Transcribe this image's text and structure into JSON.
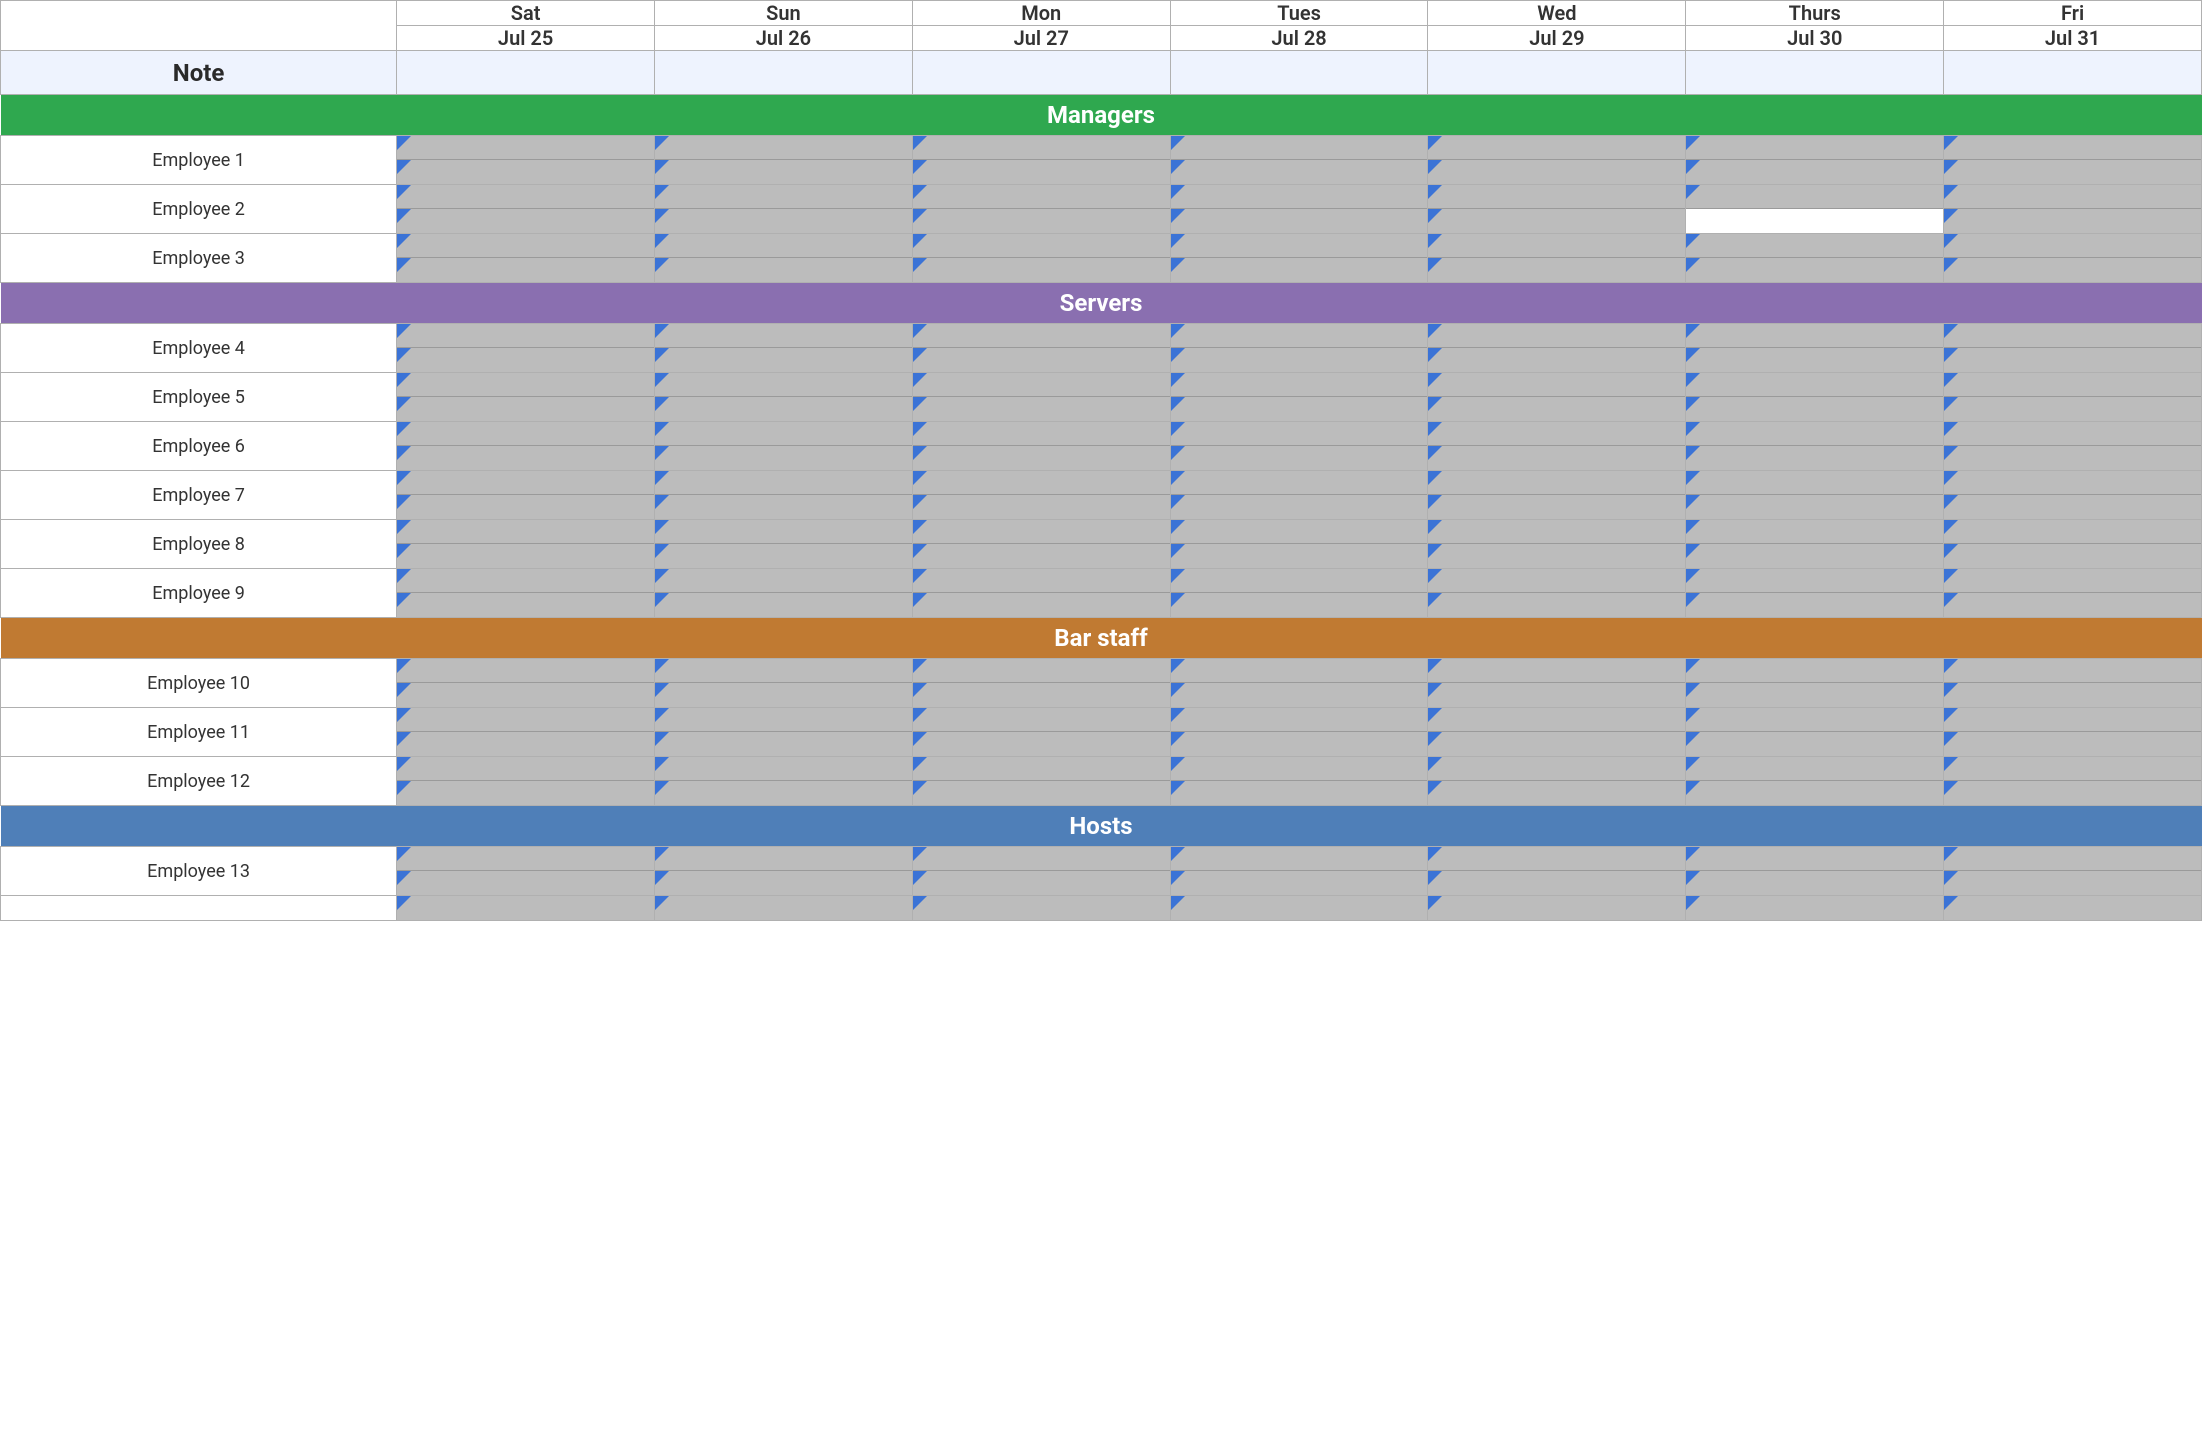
{
  "colors": {
    "flag": "#3b73d6",
    "cell_fill": "#bcbcbc",
    "cell_white": "#ffffff",
    "border": "#9a9a9a",
    "note_bg": "#eef3fe",
    "text": "#333333"
  },
  "days": [
    {
      "name": "Sat",
      "date": "Jul 25"
    },
    {
      "name": "Sun",
      "date": "Jul 26"
    },
    {
      "name": "Mon",
      "date": "Jul 27"
    },
    {
      "name": "Tues",
      "date": "Jul 28"
    },
    {
      "name": "Wed",
      "date": "Jul 29"
    },
    {
      "name": "Thurs",
      "date": "Jul 30"
    },
    {
      "name": "Fri",
      "date": "Jul 31"
    }
  ],
  "note_label": "Note",
  "groups": [
    {
      "name": "Managers",
      "color": "#2fa84f",
      "employees": [
        {
          "name": "Employee 1"
        },
        {
          "name": "Employee 2",
          "overrides": {
            "5": {
              "bottom_white": true
            }
          }
        },
        {
          "name": "Employee 3"
        }
      ]
    },
    {
      "name": "Servers",
      "color": "#8a6fb0",
      "employees": [
        {
          "name": "Employee 4"
        },
        {
          "name": "Employee 5"
        },
        {
          "name": "Employee 6"
        },
        {
          "name": "Employee 7"
        },
        {
          "name": "Employee 8"
        },
        {
          "name": "Employee 9"
        }
      ]
    },
    {
      "name": "Bar staff",
      "color": "#c07a32",
      "employees": [
        {
          "name": "Employee 10"
        },
        {
          "name": "Employee 11"
        },
        {
          "name": "Employee 12"
        }
      ]
    },
    {
      "name": "Hosts",
      "color": "#4f7fb8",
      "employees": [
        {
          "name": "Employee 13"
        },
        {
          "name": "",
          "partial_top_only": true
        }
      ]
    }
  ]
}
